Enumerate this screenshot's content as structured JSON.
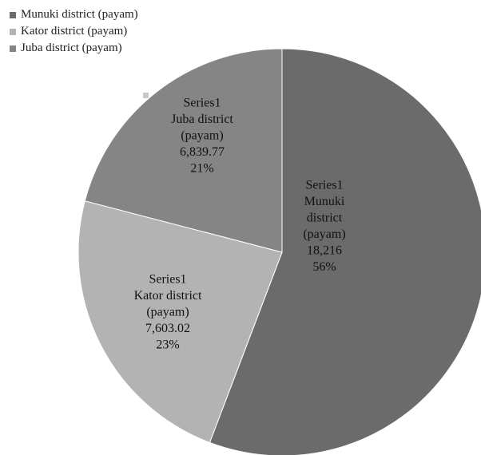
{
  "chart_data": {
    "type": "pie",
    "legend_position": "top-left",
    "series": [
      {
        "name": "Series1",
        "slices": [
          {
            "label": "Munuki district (payam)",
            "value": 18216,
            "value_text": "18,216",
            "percent_text": "56%",
            "color": "#6b6b6b"
          },
          {
            "label": "Kator district (payam)",
            "value": 7603.02,
            "value_text": "7,603.02",
            "percent_text": "23%",
            "color": "#b3b3b3"
          },
          {
            "label": "Juba district (payam)",
            "value": 6839.77,
            "value_text": "6,839.77",
            "percent_text": "21%",
            "color": "#858585"
          }
        ]
      }
    ],
    "label_lines": [
      [
        "Series1",
        "Munuki",
        "district",
        "(payam)",
        "18,216",
        "56%"
      ],
      [
        "Series1",
        "Kator district",
        "(payam)",
        "7,603.02",
        "23%"
      ],
      [
        "Series1",
        "Juba district",
        "(payam)",
        "6,839.77",
        "21%"
      ]
    ]
  }
}
